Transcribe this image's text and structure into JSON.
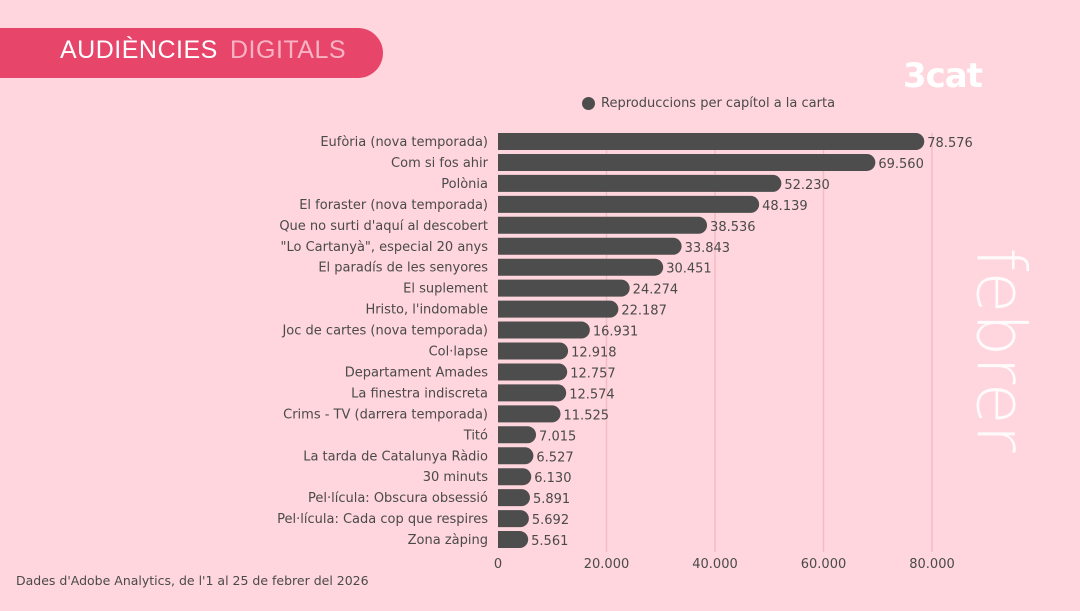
{
  "header": {
    "title_part1": "AUDIÈNCIES",
    "title_part2": "DIGITALS",
    "logo": "3cat",
    "month": "febrer"
  },
  "source": "Dades d'Adobe Analytics, de l'1 al 25 de febrer del 2026",
  "colors": {
    "background": "#ffd6dd",
    "banner": "#e8456b",
    "bar": "#4d4d4d"
  },
  "chart_data": {
    "type": "bar",
    "orientation": "horizontal",
    "legend": "top",
    "grid": true,
    "xlim": [
      0,
      80000
    ],
    "xticks": [
      0,
      20000,
      40000,
      60000,
      80000
    ],
    "xtick_labels": [
      "0",
      "20.000",
      "40.000",
      "60.000",
      "80.000"
    ],
    "series": [
      {
        "name": "Reproduccions per capítol a la carta",
        "values": [
          78576,
          69560,
          52230,
          48139,
          38536,
          33843,
          30451,
          24274,
          22187,
          16931,
          12918,
          12757,
          12574,
          11525,
          7015,
          6527,
          6130,
          5891,
          5692,
          5561
        ]
      }
    ],
    "value_labels": [
      "78.576",
      "69.560",
      "52.230",
      "48.139",
      "38.536",
      "33.843",
      "30.451",
      "24.274",
      "22.187",
      "16.931",
      "12.918",
      "12.757",
      "12.574",
      "11.525",
      "7.015",
      "6.527",
      "6.130",
      "5.891",
      "5.692",
      "5.561"
    ],
    "categories": [
      "Eufòria (nova temporada)",
      "Com si fos ahir",
      "Polònia",
      "El foraster (nova temporada)",
      "Que no surti d'aquí al descobert",
      "\"Lo Cartanyà\", especial 20 anys",
      "El paradís de les senyores",
      "El suplement",
      "Hristo, l'indomable",
      "Joc de cartes (nova temporada)",
      "Col·lapse",
      "Departament Amades",
      "La finestra indiscreta",
      "Crims - TV (darrera temporada)",
      "Titó",
      "La tarda de Catalunya Ràdio",
      "30 minuts",
      "Pel·lícula: Obscura obsessió",
      "Pel·lícula: Cada cop que respires",
      "Zona zàping"
    ]
  }
}
